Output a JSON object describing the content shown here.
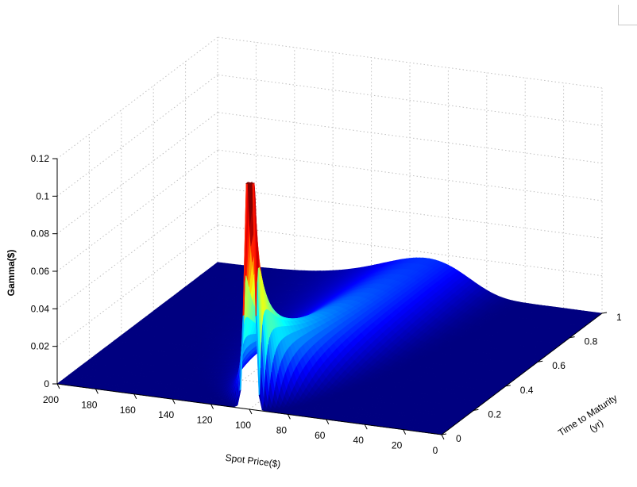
{
  "chart_data": {
    "type": "surface",
    "title": "",
    "xlabel": "Spot Price($)",
    "ylabel": "Time to Maturity (yr)",
    "zlabel": "Gamma($)",
    "xlim": [
      0,
      200
    ],
    "ylim": [
      0,
      1
    ],
    "zlim": [
      0,
      0.12
    ],
    "x_ticks": [
      "0",
      "20",
      "40",
      "60",
      "80",
      "100",
      "120",
      "140",
      "160",
      "180",
      "200"
    ],
    "y_ticks": [
      "0",
      "0.2",
      "0.4",
      "0.6",
      "0.8",
      "1"
    ],
    "z_ticks": [
      "0",
      "0.02",
      "0.04",
      "0.06",
      "0.08",
      "0.1",
      "0.12"
    ],
    "grid": true,
    "colormap": "jet",
    "strike": 100,
    "peak_gamma": 0.1,
    "peak_location": {
      "spot_price": 100,
      "time_to_maturity": 0.0
    },
    "colors": {
      "low": "#00008f",
      "high": "#800000"
    }
  }
}
